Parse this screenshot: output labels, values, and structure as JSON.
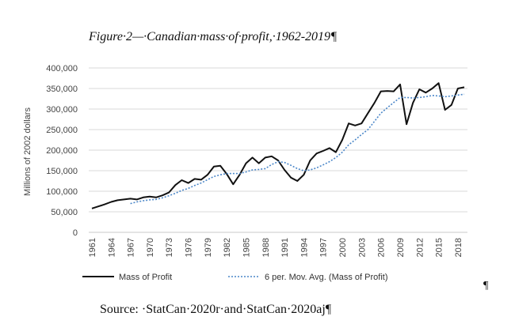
{
  "title": "Figure·2—·Canadian·mass·of·profit,·1962-2019¶",
  "source": "Source: ·StatCan·2020r·and·StatCan·2020aj¶",
  "pilcrow": "¶",
  "chart_data": {
    "type": "line",
    "ylabel": "Millions of 2002 dollars",
    "ylim": [
      0,
      400000
    ],
    "yticks": [
      0,
      50000,
      100000,
      150000,
      200000,
      250000,
      300000,
      350000,
      400000
    ],
    "ytick_labels": [
      "0",
      "50,000",
      "100,000",
      "150,000",
      "200,000",
      "250,000",
      "300,000",
      "350,000",
      "400,000"
    ],
    "x_tick_labels": [
      "1961",
      "1964",
      "1967",
      "1970",
      "1973",
      "1976",
      "1979",
      "1982",
      "1985",
      "1988",
      "1991",
      "1994",
      "1997",
      "2000",
      "2003",
      "2006",
      "2009",
      "2012",
      "2015",
      "2018"
    ],
    "x": [
      1961,
      1962,
      1963,
      1964,
      1965,
      1966,
      1967,
      1968,
      1969,
      1970,
      1971,
      1972,
      1973,
      1974,
      1975,
      1976,
      1977,
      1978,
      1979,
      1980,
      1981,
      1982,
      1983,
      1984,
      1985,
      1986,
      1987,
      1988,
      1989,
      1990,
      1991,
      1992,
      1993,
      1994,
      1995,
      1996,
      1997,
      1998,
      1999,
      2000,
      2001,
      2002,
      2003,
      2004,
      2005,
      2006,
      2007,
      2008,
      2009,
      2010,
      2011,
      2012,
      2013,
      2014,
      2015,
      2016,
      2017,
      2018,
      2019
    ],
    "grid": true,
    "legend_position": "bottom",
    "series": [
      {
        "name": "Mass of Profit",
        "color": "#111111",
        "style": "solid",
        "values": [
          58000,
          63000,
          68000,
          74000,
          78000,
          80000,
          82000,
          80000,
          85000,
          87000,
          85000,
          90000,
          97000,
          115000,
          127000,
          120000,
          130000,
          128000,
          140000,
          160000,
          162000,
          142000,
          117000,
          140000,
          168000,
          182000,
          168000,
          182000,
          185000,
          175000,
          152000,
          133000,
          125000,
          140000,
          175000,
          192000,
          198000,
          205000,
          195000,
          225000,
          265000,
          260000,
          265000,
          290000,
          315000,
          343000,
          344000,
          343000,
          360000,
          263000,
          315000,
          348000,
          340000,
          350000,
          363000,
          298000,
          310000,
          350000,
          353000
        ]
      },
      {
        "name": "6 per. Mov. Avg. (Mass of Profit)",
        "color": "#4a86c8",
        "style": "dotted",
        "values": [
          null,
          null,
          null,
          null,
          null,
          null,
          70000,
          74000,
          77000,
          79000,
          80000,
          84000,
          89000,
          95000,
          102000,
          107000,
          114000,
          120000,
          128000,
          136000,
          140000,
          143000,
          143000,
          143000,
          147000,
          152000,
          153000,
          155000,
          165000,
          172000,
          170000,
          163000,
          155000,
          150000,
          152000,
          157000,
          164000,
          172000,
          182000,
          195000,
          213000,
          225000,
          238000,
          250000,
          270000,
          290000,
          303000,
          316000,
          328000,
          328000,
          327000,
          328000,
          330000,
          333000,
          332000,
          330000,
          332000,
          334000,
          336000
        ]
      }
    ]
  }
}
